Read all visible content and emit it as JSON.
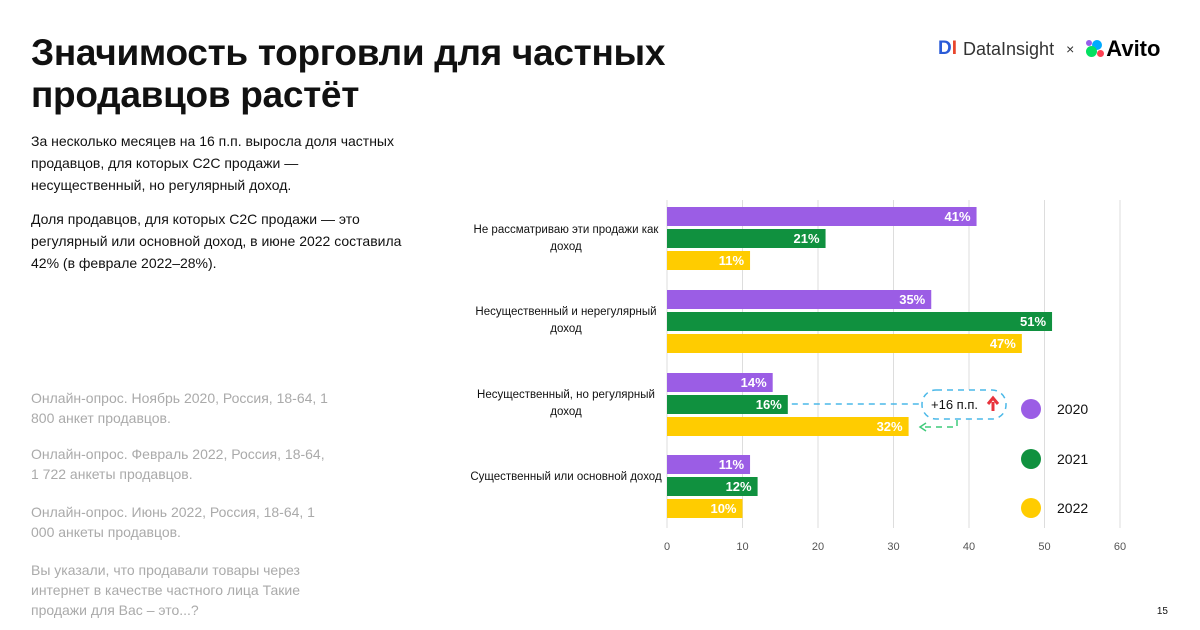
{
  "title": "Значимость торговли для частных продавцов растёт",
  "paragraph1": "За несколько месяцев на 16 п.п. выросла доля частных продавцов, для которых C2C продажи — несущественный, но регулярный доход.",
  "paragraph2": "Доля продавцов, для которых C2C продажи — это регулярный или основной доход, в июне 2022 составила 42% (в феврале 2022–28%).",
  "sources": [
    "Онлайн-опрос. Ноябрь 2020, Россия, 18-64, 1 800 анкет продавцов.",
    "Онлайн-опрос. Февраль 2022, Россия, 18-64, 1 722 анкеты продавцов.",
    "Онлайн-опрос. Июнь 2022, Россия, 18-64, 1 000 анкеты продавцов.",
    "Вы указали, что продавали товары через интернет в качестве частного лица  Такие продажи для Вас – это...?"
  ],
  "logos": {
    "datainsight": "DataInsight",
    "separator": "×",
    "avito": "Avito"
  },
  "page_number": "15",
  "chart_data": {
    "type": "bar",
    "orientation": "horizontal",
    "categories": [
      "Не рассматриваю эти продажи как доход",
      "Несущественный и нерегулярный доход",
      "Несущественный, но регулярный доход",
      "Существенный или основной доход"
    ],
    "series": [
      {
        "name": "2020",
        "color": "#9b5de5",
        "values": [
          41,
          35,
          14,
          11
        ]
      },
      {
        "name": "2021",
        "color": "#10913f",
        "values": [
          21,
          51,
          16,
          12
        ]
      },
      {
        "name": "2022",
        "color": "#ffcc00",
        "values": [
          11,
          47,
          32,
          10
        ]
      }
    ],
    "xlim": [
      0,
      60
    ],
    "xticks": [
      0,
      10,
      20,
      30,
      40,
      50,
      60
    ],
    "grid": true,
    "legend": "right",
    "annotation": "+16 п.п."
  }
}
